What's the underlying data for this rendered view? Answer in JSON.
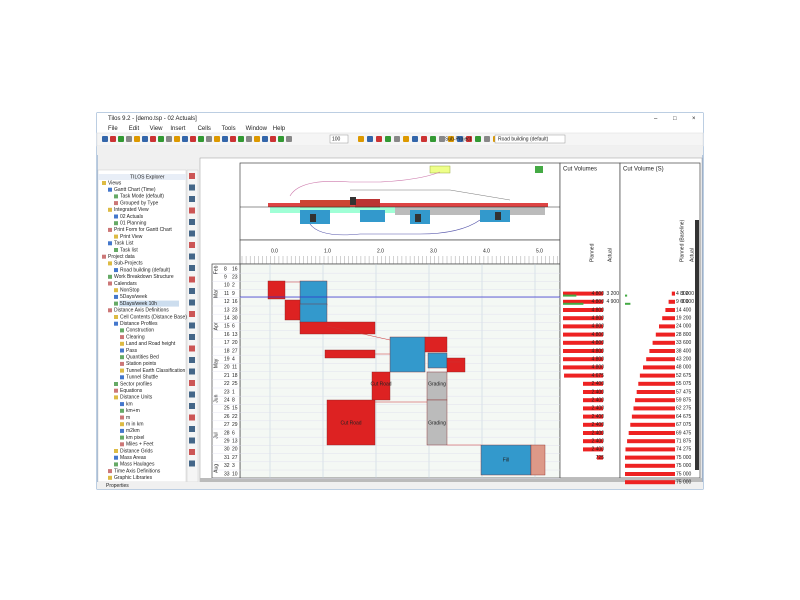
{
  "window": {
    "title": "Tilos 9.2 - [demo.tsp - 02 Actuals]"
  },
  "menu": [
    "File",
    "Edit",
    "View",
    "Insert",
    "Cells",
    "Tools",
    "Window",
    "Help"
  ],
  "toolbar": {
    "zoom": "100",
    "subproject_label": "Sub-Project",
    "subproject": "Road building (default)"
  },
  "explorer": {
    "title": "TILOS Explorer",
    "items": [
      "Views",
      "Gantt Chart (Time)",
      "Task Mode (default)",
      "Grouped by Type",
      "Integrated View",
      "02 Actuals",
      "01 Planning",
      "Print Form for Gantt Chart",
      "Print View",
      "Task List",
      "Task list",
      "Project data",
      "Sub-Projects",
      "Road building (default)",
      "Work Breakdown Structure",
      "Calendars",
      "NonStop",
      "5Days/week",
      "5Days/week 10h",
      "Distance Axis Definitions",
      "Cell Contents (Distance Base)",
      "Distance Profiles",
      "Construction",
      "Clearing",
      "Land and Road height",
      "Pass",
      "Quantities Bed",
      "Station points",
      "Tunnel Earth Classification",
      "Tunnel Shuttle",
      "Sector profiles",
      "Equations",
      "Distance Units",
      "km",
      "km+m",
      "m",
      "m in km",
      "m2km",
      "km pixel",
      "Miles + Feet",
      "Distance Grids",
      "Mass Areas",
      "Mass Haulages",
      "Time Axis Definitions",
      "Graphic Libraries"
    ]
  },
  "diagram": {
    "distance_labels": [
      "0.0",
      "1.0",
      "2.0",
      "3.0",
      "4.0",
      "5.0"
    ],
    "months": [
      "Feb",
      "Mar",
      "Apr",
      "May",
      "Jun",
      "Jul",
      "Aug"
    ],
    "weeks": [
      [
        "8",
        "16"
      ],
      [
        "9",
        "23"
      ],
      [
        "10",
        "2"
      ],
      [
        "11",
        "9"
      ],
      [
        "12",
        "16"
      ],
      [
        "13",
        "23"
      ],
      [
        "14",
        "30"
      ],
      [
        "15",
        "6"
      ],
      [
        "16",
        "13"
      ],
      [
        "17",
        "20"
      ],
      [
        "18",
        "27"
      ],
      [
        "19",
        "4"
      ],
      [
        "20",
        "11"
      ],
      [
        "21",
        "18"
      ],
      [
        "22",
        "25"
      ],
      [
        "23",
        "1"
      ],
      [
        "24",
        "8"
      ],
      [
        "25",
        "15"
      ],
      [
        "26",
        "22"
      ],
      [
        "27",
        "29"
      ],
      [
        "28",
        "6"
      ],
      [
        "29",
        "13"
      ],
      [
        "30",
        "20"
      ],
      [
        "31",
        "27"
      ],
      [
        "32",
        "3"
      ],
      [
        "33",
        "10"
      ]
    ],
    "activities": [
      "Cut Road",
      "Grading",
      "Cut Road",
      "Grading",
      "Fill"
    ]
  },
  "cut_volumes": {
    "title": "Cut Volumes",
    "columns": [
      "Planned",
      "Actual"
    ],
    "planned": [
      "4 800",
      "4 800",
      "4 800",
      "4 800",
      "4 800",
      "4 800",
      "4 800",
      "4 800",
      "4 800",
      "4 800",
      "4 675",
      "2 400",
      "2 400",
      "2 400",
      "2 400",
      "2 400",
      "2 400",
      "2 400",
      "2 400",
      "2 400",
      "725"
    ],
    "actual": [
      "3 200",
      "4 900"
    ]
  },
  "cut_volume_sum": {
    "title": "Cut Volume (S)",
    "columns": [
      "Planned (Baseline)",
      "Actual"
    ],
    "planned": [
      "4 800",
      "9 600",
      "14 400",
      "19 200",
      "24 000",
      "28 800",
      "33 600",
      "38 400",
      "43 200",
      "48 000",
      "52 675",
      "55 075",
      "57 475",
      "59 875",
      "62 275",
      "64 675",
      "67 075",
      "69 475",
      "71 875",
      "74 275",
      "75 000",
      "75 000",
      "75 000",
      "75 000"
    ],
    "actual": [
      "3 200",
      "8 100"
    ]
  },
  "status": {
    "properties": "Properties"
  }
}
